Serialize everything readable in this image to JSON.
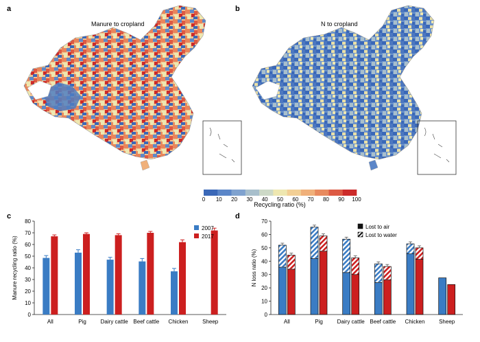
{
  "panels": {
    "a": {
      "letter": "a",
      "title": "Manure to cropland"
    },
    "b": {
      "letter": "b",
      "title": "N to cropland"
    },
    "c": {
      "letter": "c"
    },
    "d": {
      "letter": "d"
    }
  },
  "colorbar": {
    "label": "Recycling ratio (%)",
    "ticks": [
      "0",
      "10",
      "20",
      "30",
      "40",
      "50",
      "60",
      "70",
      "80",
      "90",
      "100"
    ],
    "colors": [
      "#3a68b8",
      "#5b86c8",
      "#7fa2cf",
      "#a8bfcc",
      "#cdd9c7",
      "#eee7b0",
      "#f2cf95",
      "#f0b07a",
      "#e88a5e",
      "#dd5a44",
      "#cc2b2a"
    ]
  },
  "chart_data": [
    {
      "panel": "c",
      "type": "bar",
      "ylabel": "Manure recycling ratio (%)",
      "xlabel": "",
      "ylim": [
        0,
        80
      ],
      "yticks": [
        0,
        10,
        20,
        30,
        40,
        50,
        60,
        70,
        80
      ],
      "categories": [
        "All",
        "Pig",
        "Dairy cattle",
        "Beef cattle",
        "Chicken",
        "Sheep"
      ],
      "series": [
        {
          "name": "2007",
          "color": "#3a7cc4",
          "values": [
            48.5,
            53.0,
            47.0,
            45.5,
            37.0,
            null
          ],
          "errors": [
            2,
            2.5,
            2,
            2.5,
            2.5,
            null
          ]
        },
        {
          "name": "2017",
          "color": "#cc1f1f",
          "values": [
            67.0,
            69.0,
            68.0,
            70.0,
            62.0,
            72.0
          ],
          "errors": [
            1.2,
            1,
            1.2,
            1.2,
            2,
            2
          ]
        }
      ],
      "legend": "top-right",
      "grid": false
    },
    {
      "panel": "d",
      "type": "bar",
      "stacked": true,
      "ylabel": "N loss ratio (%)",
      "xlabel": "",
      "ylim": [
        0,
        70
      ],
      "yticks": [
        0,
        10,
        20,
        30,
        40,
        50,
        60,
        70
      ],
      "categories": [
        "All",
        "Pig",
        "Dairy cattle",
        "Beef cattle",
        "Chicken",
        "Sheep"
      ],
      "legend_entries": [
        "Lost to air",
        "Lost to water"
      ],
      "legend": "top-right",
      "grid": false,
      "years": [
        "2007",
        "2017"
      ],
      "colors": {
        "2007": "#3a7cc4",
        "2017": "#cc1f1f"
      },
      "series": [
        {
          "year": "2007",
          "air": [
            35.5,
            42.0,
            31.5,
            24.0,
            45.5,
            27.5
          ],
          "water": [
            16.5,
            23.5,
            25.0,
            14.0,
            7.5,
            null
          ]
        },
        {
          "year": "2017",
          "air": [
            34.0,
            47.5,
            30.0,
            26.0,
            41.5,
            22.5
          ],
          "water": [
            10.5,
            11.5,
            12.5,
            10.0,
            8.5,
            null
          ]
        }
      ]
    }
  ]
}
